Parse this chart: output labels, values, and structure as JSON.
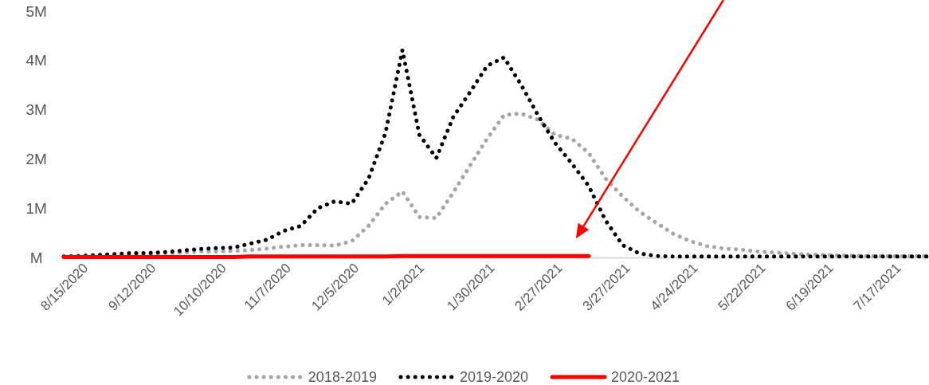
{
  "chart_data": {
    "type": "line",
    "x": [
      "2020-08-15",
      "2020-08-22",
      "2020-08-29",
      "2020-09-05",
      "2020-09-12",
      "2020-09-19",
      "2020-09-26",
      "2020-10-03",
      "2020-10-10",
      "2020-10-17",
      "2020-10-24",
      "2020-10-31",
      "2020-11-07",
      "2020-11-14",
      "2020-11-21",
      "2020-11-28",
      "2020-12-05",
      "2020-12-12",
      "2020-12-19",
      "2020-12-26",
      "2021-01-02",
      "2021-01-09",
      "2021-01-16",
      "2021-01-23",
      "2021-01-30",
      "2021-02-06",
      "2021-02-13",
      "2021-02-20",
      "2021-02-27",
      "2021-03-06",
      "2021-03-13",
      "2021-03-20",
      "2021-03-27",
      "2021-04-03",
      "2021-04-10",
      "2021-04-17",
      "2021-04-24",
      "2021-05-01",
      "2021-05-08",
      "2021-05-15",
      "2021-05-22",
      "2021-05-29",
      "2021-06-05",
      "2021-06-12",
      "2021-06-19",
      "2021-06-26",
      "2021-07-03",
      "2021-07-10",
      "2021-07-17",
      "2021-07-24",
      "2021-07-31",
      "2021-08-07"
    ],
    "series": [
      {
        "name": "2018-2019",
        "color": "#a6a6a6",
        "line_style": "dotted",
        "values": [
          20000,
          30000,
          40000,
          50000,
          60000,
          70000,
          80000,
          100000,
          120000,
          120000,
          130000,
          150000,
          180000,
          220000,
          250000,
          250000,
          240000,
          330000,
          640000,
          1090000,
          1340000,
          820000,
          800000,
          1320000,
          1870000,
          2410000,
          2890000,
          2920000,
          2800000,
          2490000,
          2410000,
          2120000,
          1600000,
          1240000,
          930000,
          700000,
          480000,
          330000,
          230000,
          180000,
          160000,
          120000,
          100000,
          80000,
          60000,
          50000,
          40000,
          30000,
          30000,
          30000,
          30000,
          30000
        ]
      },
      {
        "name": "2019-2020",
        "color": "#000000",
        "line_style": "dotted",
        "values": [
          20000,
          30000,
          50000,
          70000,
          90000,
          90000,
          110000,
          140000,
          170000,
          190000,
          200000,
          280000,
          360000,
          540000,
          640000,
          1000000,
          1140000,
          1090000,
          1600000,
          2530000,
          4210000,
          2490000,
          2020000,
          2850000,
          3360000,
          3890000,
          4060000,
          3510000,
          2890000,
          2330000,
          1910000,
          1450000,
          750000,
          250000,
          80000,
          30000,
          20000,
          20000,
          20000,
          20000,
          20000,
          20000,
          20000,
          20000,
          20000,
          20000,
          20000,
          20000,
          20000,
          20000,
          20000,
          20000
        ]
      },
      {
        "name": "2020-2021",
        "color": "#ff0000",
        "line_style": "solid",
        "values": [
          10000,
          10000,
          10000,
          10000,
          10000,
          10000,
          10000,
          10000,
          10000,
          10000,
          10000,
          20000,
          20000,
          20000,
          20000,
          20000,
          20000,
          20000,
          20000,
          20000,
          30000,
          30000,
          30000,
          30000,
          30000,
          30000,
          30000,
          30000,
          30000,
          30000,
          30000,
          30000,
          null,
          null,
          null,
          null,
          null,
          null,
          null,
          null,
          null,
          null,
          null,
          null,
          null,
          null,
          null,
          null,
          null,
          null,
          null,
          null
        ]
      }
    ],
    "xlim": [
      "2020-08-15",
      "2021-08-07"
    ],
    "xticks": [
      {
        "value": "2020-08-15",
        "label": "8/15/2020"
      },
      {
        "value": "2020-09-12",
        "label": "9/12/2020"
      },
      {
        "value": "2020-10-10",
        "label": "10/10/2020"
      },
      {
        "value": "2020-11-07",
        "label": "11/7/2020"
      },
      {
        "value": "2020-12-05",
        "label": "12/5/2020"
      },
      {
        "value": "2021-01-02",
        "label": "1/2/2021"
      },
      {
        "value": "2021-01-30",
        "label": "1/30/2021"
      },
      {
        "value": "2021-02-27",
        "label": "2/27/2021"
      },
      {
        "value": "2021-03-27",
        "label": "3/27/2021"
      },
      {
        "value": "2021-04-24",
        "label": "4/24/2021"
      },
      {
        "value": "2021-05-22",
        "label": "5/22/2021"
      },
      {
        "value": "2021-06-19",
        "label": "6/19/2021"
      },
      {
        "value": "2021-07-17",
        "label": "7/17/2021"
      }
    ],
    "ylim": [
      0,
      5000000
    ],
    "yticks": [
      {
        "value": 0,
        "label": "M"
      },
      {
        "value": 1000000,
        "label": "1M"
      },
      {
        "value": 2000000,
        "label": "2M"
      },
      {
        "value": 3000000,
        "label": "3M"
      },
      {
        "value": 4000000,
        "label": "4M"
      },
      {
        "value": 5000000,
        "label": "5M"
      }
    ],
    "grid": false,
    "legend": "bottom"
  }
}
